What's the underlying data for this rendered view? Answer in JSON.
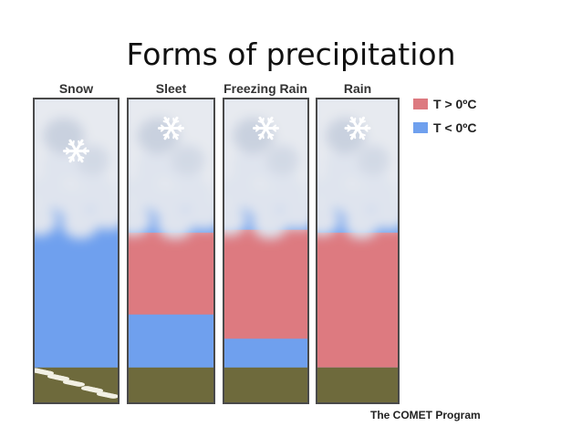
{
  "title": "Forms of precipitation",
  "columns": [
    {
      "label": "Snow",
      "warm_layer_top": null,
      "warm_layer_bottom": null,
      "ground": "snow-covered"
    },
    {
      "label": "Sleet",
      "warm_layer_top": 0.44,
      "warm_layer_bottom": 0.71,
      "ground": "bare"
    },
    {
      "label": "Freezing Rain",
      "warm_layer_top": 0.43,
      "warm_layer_bottom": 0.79,
      "ground": "bare"
    },
    {
      "label": "Rain",
      "warm_layer_top": 0.44,
      "warm_layer_bottom": 0.89,
      "ground": "bare"
    }
  ],
  "legend": [
    {
      "label": "T > 0ºC",
      "color": "#dd7a80"
    },
    {
      "label": "T < 0ºC",
      "color": "#6fa0ee"
    }
  ],
  "credit": "The COMET Program",
  "colors": {
    "warm": "#dd7a80",
    "cold": "#6fa0ee",
    "ground": "#6e6a3c",
    "cloud": "#e7eaf0",
    "border": "#4a4a4a"
  }
}
